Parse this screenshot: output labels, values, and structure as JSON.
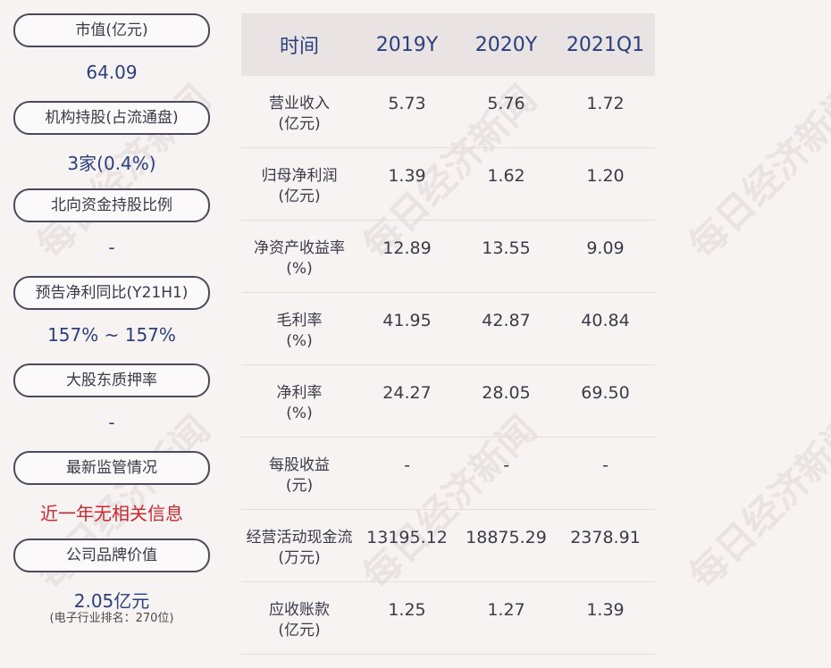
{
  "sidebar": {
    "items": [
      {
        "label": "市值(亿元)",
        "value": "64.09",
        "color": "blue"
      },
      {
        "label": "机构持股(占流通盘)",
        "value": "3家(0.4%)",
        "color": "blue"
      },
      {
        "label": "北向资金持股比例",
        "value": "-",
        "color": "blue"
      },
      {
        "label": "预告净利同比(Y21H1)",
        "value": "157% ~ 157%",
        "color": "blue"
      },
      {
        "label": "大股东质押率",
        "value": "-",
        "color": "blue"
      },
      {
        "label": "最新监管情况",
        "value": "近一年无相关信息",
        "color": "red"
      },
      {
        "label": "公司品牌价值",
        "value": "2.05亿元",
        "color": "blue"
      }
    ],
    "brand_note": "(电子行业排名：270位)"
  },
  "table": {
    "headers": [
      "时间",
      "2019Y",
      "2020Y",
      "2021Q1"
    ],
    "rows": [
      {
        "label1": "营业收入",
        "label2": "(亿元)",
        "values": [
          "5.73",
          "5.76",
          "1.72"
        ]
      },
      {
        "label1": "归母净利润",
        "label2": "(亿元)",
        "values": [
          "1.39",
          "1.62",
          "1.20"
        ]
      },
      {
        "label1": "净资产收益率",
        "label2": "(%)",
        "values": [
          "12.89",
          "13.55",
          "9.09"
        ]
      },
      {
        "label1": "毛利率",
        "label2": "(%)",
        "values": [
          "41.95",
          "42.87",
          "40.84"
        ]
      },
      {
        "label1": "净利率",
        "label2": "(%)",
        "values": [
          "24.27",
          "28.05",
          "69.50"
        ]
      },
      {
        "label1": "每股收益",
        "label2": "(元)",
        "values": [
          "-",
          "-",
          "-"
        ]
      },
      {
        "label1": "经营活动现金流",
        "label2": "(万元)",
        "values": [
          "13195.12",
          "18875.29",
          "2378.91"
        ]
      },
      {
        "label1": "应收账款",
        "label2": "(亿元)",
        "values": [
          "1.25",
          "1.27",
          "1.39"
        ]
      }
    ]
  },
  "watermark": "每日经济新闻",
  "colors": {
    "accent_blue": "#2a3f7e",
    "alert_red": "#c8282e",
    "header_bg": "#e9e3e3"
  }
}
